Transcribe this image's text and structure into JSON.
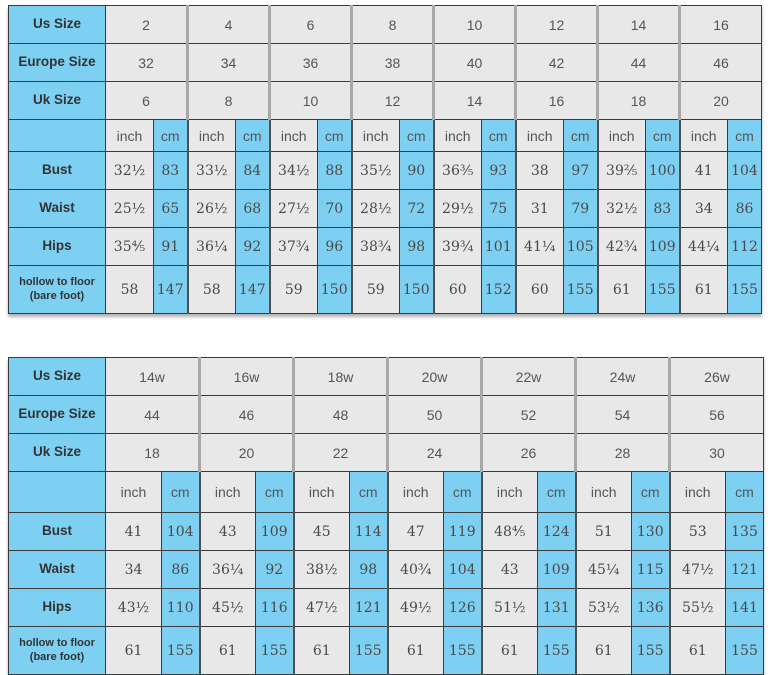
{
  "colors": {
    "header_blue": "#7dd0f2",
    "cell_gray": "#e8e8e8",
    "border_dark": "#3a3a3a",
    "group_separator_gray": "#a8a8a8",
    "text_dark": "#4a4a4a"
  },
  "chart_data": [
    {
      "type": "table",
      "size_rows": [
        {
          "label": "Us Size",
          "values": [
            "2",
            "4",
            "6",
            "8",
            "10",
            "12",
            "14",
            "16"
          ]
        },
        {
          "label": "Europe Size",
          "values": [
            "32",
            "34",
            "36",
            "38",
            "40",
            "42",
            "44",
            "46"
          ]
        },
        {
          "label": "Uk Size",
          "values": [
            "6",
            "8",
            "10",
            "12",
            "14",
            "16",
            "18",
            "20"
          ]
        }
      ],
      "unit_labels": [
        "inch",
        "cm"
      ],
      "measure_rows": [
        {
          "label": "Bust",
          "pairs": [
            [
              "32½",
              "83"
            ],
            [
              "33½",
              "84"
            ],
            [
              "34½",
              "88"
            ],
            [
              "35½",
              "90"
            ],
            [
              "36⅗",
              "93"
            ],
            [
              "38",
              "97"
            ],
            [
              "39⅖",
              "100"
            ],
            [
              "41",
              "104"
            ]
          ]
        },
        {
          "label": "Waist",
          "pairs": [
            [
              "25½",
              "65"
            ],
            [
              "26½",
              "68"
            ],
            [
              "27½",
              "70"
            ],
            [
              "28½",
              "72"
            ],
            [
              "29½",
              "75"
            ],
            [
              "31",
              "79"
            ],
            [
              "32½",
              "83"
            ],
            [
              "34",
              "86"
            ]
          ]
        },
        {
          "label": "Hips",
          "pairs": [
            [
              "35⅘",
              "91"
            ],
            [
              "36¼",
              "92"
            ],
            [
              "37¾",
              "96"
            ],
            [
              "38¾",
              "98"
            ],
            [
              "39¾",
              "101"
            ],
            [
              "41¼",
              "105"
            ],
            [
              "42¾",
              "109"
            ],
            [
              "44¼",
              "112"
            ]
          ]
        },
        {
          "label": "hollow to floor\n(bare foot)",
          "pairs": [
            [
              "58",
              "147"
            ],
            [
              "58",
              "147"
            ],
            [
              "59",
              "150"
            ],
            [
              "59",
              "150"
            ],
            [
              "60",
              "152"
            ],
            [
              "60",
              "155"
            ],
            [
              "61",
              "155"
            ],
            [
              "61",
              "155"
            ]
          ]
        }
      ]
    },
    {
      "type": "table",
      "size_rows": [
        {
          "label": "Us Size",
          "values": [
            "14w",
            "16w",
            "18w",
            "20w",
            "22w",
            "24w",
            "26w"
          ]
        },
        {
          "label": "Europe Size",
          "values": [
            "44",
            "46",
            "48",
            "50",
            "52",
            "54",
            "56"
          ]
        },
        {
          "label": "Uk Size",
          "values": [
            "18",
            "20",
            "22",
            "24",
            "26",
            "28",
            "30"
          ]
        }
      ],
      "unit_labels": [
        "inch",
        "cm"
      ],
      "measure_rows": [
        {
          "label": "Bust",
          "pairs": [
            [
              "41",
              "104"
            ],
            [
              "43",
              "109"
            ],
            [
              "45",
              "114"
            ],
            [
              "47",
              "119"
            ],
            [
              "48⅘",
              "124"
            ],
            [
              "51",
              "130"
            ],
            [
              "53",
              "135"
            ]
          ]
        },
        {
          "label": "Waist",
          "pairs": [
            [
              "34",
              "86"
            ],
            [
              "36¼",
              "92"
            ],
            [
              "38½",
              "98"
            ],
            [
              "40¾",
              "104"
            ],
            [
              "43",
              "109"
            ],
            [
              "45¼",
              "115"
            ],
            [
              "47½",
              "121"
            ]
          ]
        },
        {
          "label": "Hips",
          "pairs": [
            [
              "43½",
              "110"
            ],
            [
              "45½",
              "116"
            ],
            [
              "47½",
              "121"
            ],
            [
              "49½",
              "126"
            ],
            [
              "51½",
              "131"
            ],
            [
              "53½",
              "136"
            ],
            [
              "55½",
              "141"
            ]
          ]
        },
        {
          "label": "hollow to floor\n(bare foot)",
          "pairs": [
            [
              "61",
              "155"
            ],
            [
              "61",
              "155"
            ],
            [
              "61",
              "155"
            ],
            [
              "61",
              "155"
            ],
            [
              "61",
              "155"
            ],
            [
              "61",
              "155"
            ],
            [
              "61",
              "155"
            ]
          ]
        }
      ]
    }
  ]
}
